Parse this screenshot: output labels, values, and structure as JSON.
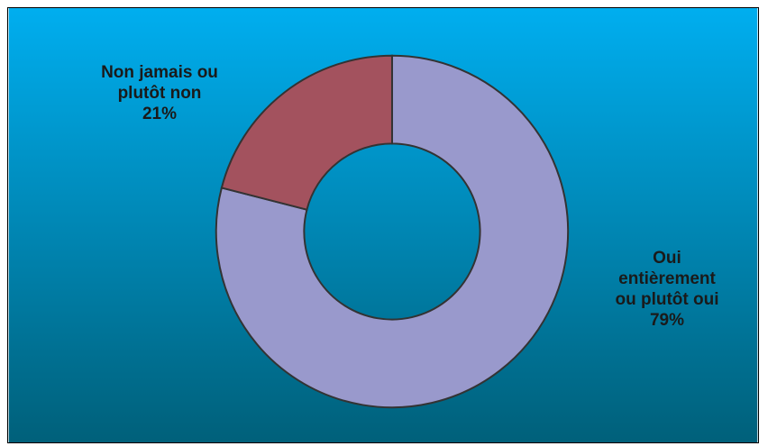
{
  "chart_data": {
    "type": "pie",
    "donut": true,
    "slices": [
      {
        "label_lines": [
          "Oui",
          "entièrement",
          "ou plutôt oui"
        ],
        "value": 79,
        "value_label": "79%",
        "color": "#9999cc"
      },
      {
        "label_lines": [
          "Non jamais ou",
          "plutôt non"
        ],
        "value": 21,
        "value_label": "21%",
        "color": "#a3525e"
      }
    ],
    "background_gradient": [
      "#00aeef",
      "#00607a"
    ],
    "border_color": "#333333",
    "legend": "none"
  }
}
